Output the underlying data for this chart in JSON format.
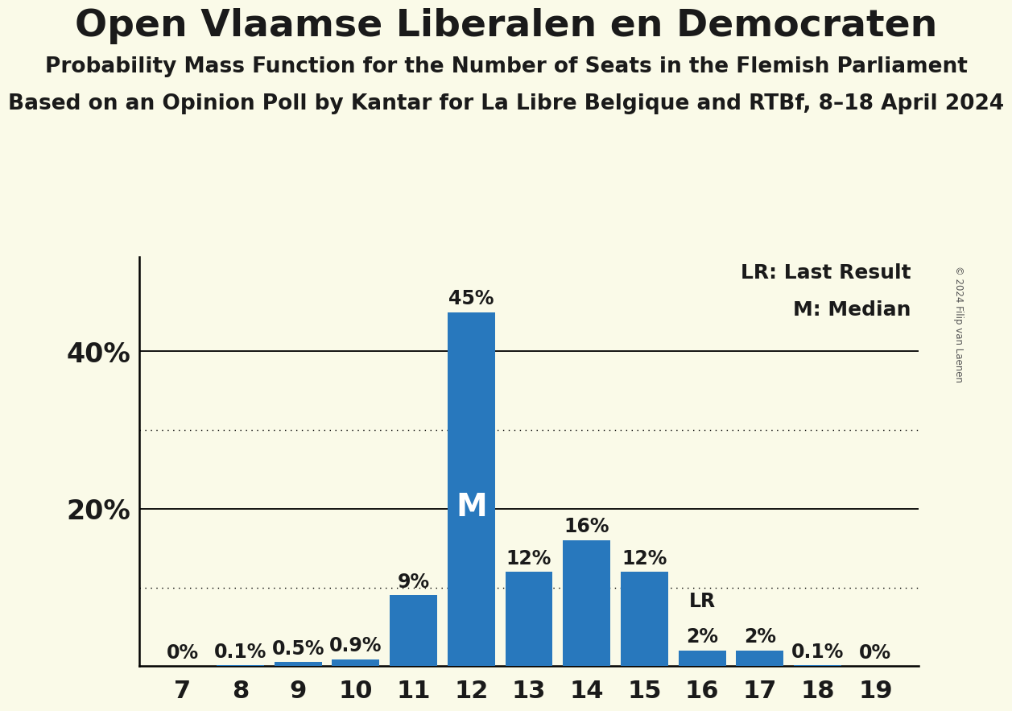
{
  "title": "Open Vlaamse Liberalen en Democraten",
  "subtitle1": "Probability Mass Function for the Number of Seats in the Flemish Parliament",
  "subtitle2": "Based on an Opinion Poll by Kantar for La Libre Belgique and RTBf, 8–18 April 2024",
  "copyright": "© 2024 Filip van Laenen",
  "seats": [
    7,
    8,
    9,
    10,
    11,
    12,
    13,
    14,
    15,
    16,
    17,
    18,
    19
  ],
  "probabilities": [
    0.0,
    0.1,
    0.5,
    0.9,
    9.0,
    45.0,
    12.0,
    16.0,
    12.0,
    2.0,
    2.0,
    0.1,
    0.0
  ],
  "bar_color": "#2878bd",
  "background_color": "#fafae8",
  "text_color": "#1a1a1a",
  "median_seat": 12,
  "last_result_seat": 16,
  "dotted_line_values": [
    10,
    30
  ],
  "solid_line_values": [
    20,
    40
  ],
  "ylim": [
    0,
    52
  ],
  "legend_lr": "LR: Last Result",
  "legend_m": "M: Median",
  "title_fontsize": 34,
  "subtitle1_fontsize": 19,
  "subtitle2_fontsize": 19,
  "label_fontsize": 17,
  "tick_fontsize": 22,
  "yaxis_fontsize": 24,
  "bar_width": 0.82
}
